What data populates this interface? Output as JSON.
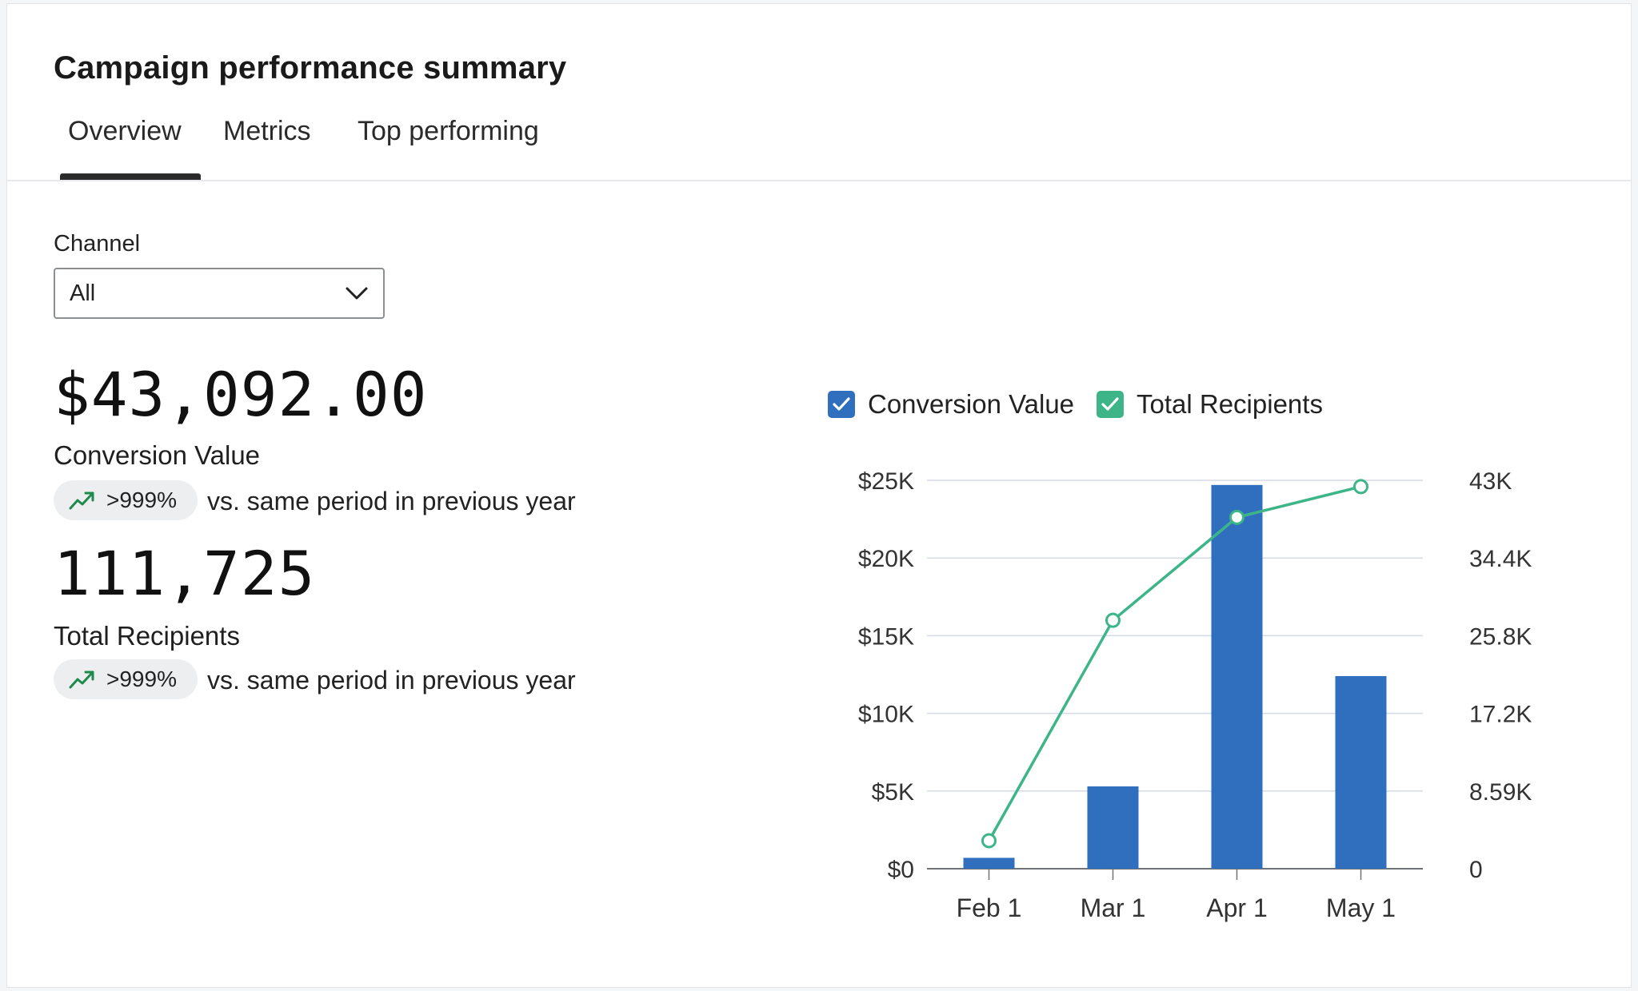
{
  "page": {
    "title": "Campaign performance summary",
    "tabs": [
      {
        "label": "Overview",
        "active": true
      },
      {
        "label": "Metrics",
        "active": false
      },
      {
        "label": "Top performing",
        "active": false
      }
    ]
  },
  "filter": {
    "label": "Channel",
    "value": "All"
  },
  "kpis": [
    {
      "value": "$43,092.00",
      "label": "Conversion Value",
      "trend_pct": ">999%",
      "trend_text": "vs. same period in previous year"
    },
    {
      "value": "111,725",
      "label": "Total Recipients",
      "trend_pct": ">999%",
      "trend_text": "vs. same period in previous year"
    }
  ],
  "colors": {
    "accent_blue": "#2f6fbd",
    "accent_green": "#3db589",
    "trend_green": "#1f8a4c"
  },
  "chart_data": {
    "type": "bar",
    "categories": [
      "Feb 1",
      "Mar 1",
      "Apr 1",
      "May 1"
    ],
    "series": [
      {
        "name": "Conversion Value",
        "type": "bar",
        "axis": "left",
        "values": [
          700,
          5300,
          24700,
          12400
        ],
        "color": "#2f6fbd",
        "checked": true
      },
      {
        "name": "Total Recipients",
        "type": "line",
        "axis": "right",
        "values": [
          3100,
          27500,
          38900,
          42300
        ],
        "color": "#3db589",
        "checked": true
      }
    ],
    "y_left": {
      "ylim": [
        0,
        25000
      ],
      "ticks": [
        "$0",
        "$5K",
        "$10K",
        "$15K",
        "$20K",
        "$25K"
      ]
    },
    "y_right": {
      "ylim": [
        0,
        43000
      ],
      "ticks": [
        "0",
        "8.59K",
        "17.2K",
        "25.8K",
        "34.4K",
        "43K"
      ]
    },
    "grid": true,
    "legend": "top-left"
  }
}
